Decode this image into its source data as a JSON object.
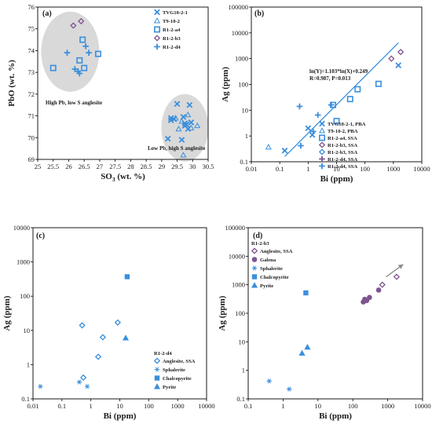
{
  "colors": {
    "primary": "#3a8fdc",
    "purple": "#7e548f",
    "cluster_fill": "#d9d9d9",
    "arrow": "#8c8c8c",
    "axis": "#000000"
  },
  "chart_data": [
    {
      "panel": "(a)",
      "type": "scatter",
      "xlabel": "SO3 (wt. %)",
      "ylabel": "PbO (wt. %)",
      "xlim": [
        25,
        30.5
      ],
      "ylim": [
        69,
        76
      ],
      "x_ticks": [
        "25",
        "25.5",
        "26",
        "26.5",
        "27",
        "27.5",
        "28",
        "28.5",
        "29",
        "29.5",
        "30",
        "30.5"
      ],
      "y_ticks": [
        "69",
        "70",
        "71",
        "72",
        "73",
        "74",
        "75",
        "76"
      ],
      "grid": false,
      "legend_position": "top-right",
      "annotations": [
        "High Pb, low S anglesite",
        "Low Pb, high S anglesite"
      ],
      "series": [
        {
          "name": "TVG10-2-1",
          "marker": "x",
          "color": "#3a8fdc",
          "points": [
            [
              29.2,
              69.95
            ],
            [
              29.3,
              70.9
            ],
            [
              29.4,
              70.85
            ],
            [
              29.5,
              71.55
            ],
            [
              29.65,
              69.9
            ],
            [
              29.7,
              70.95
            ],
            [
              29.75,
              70.55
            ],
            [
              29.8,
              70.6
            ],
            [
              29.85,
              70.4
            ],
            [
              29.9,
              71.5
            ],
            [
              29.95,
              70.7
            ],
            [
              29.75,
              70.65
            ],
            [
              29.3,
              70.8
            ]
          ]
        },
        {
          "name": "T9-10-2",
          "marker": "triangle",
          "color": "#3a8fdc",
          "points": [
            [
              29.45,
              70.9
            ],
            [
              29.55,
              70.4
            ],
            [
              29.7,
              69.2
            ],
            [
              29.85,
              71.05
            ],
            [
              29.95,
              70.45
            ],
            [
              30.15,
              70.55
            ],
            [
              29.65,
              70.75
            ]
          ]
        },
        {
          "name": "R1-2-a4",
          "marker": "square",
          "color": "#3a8fdc",
          "points": [
            [
              25.5,
              73.2
            ],
            [
              26.35,
              73.55
            ],
            [
              26.45,
              74.5
            ],
            [
              26.5,
              73.2
            ],
            [
              26.95,
              73.85
            ]
          ]
        },
        {
          "name": "R1-2-b3",
          "marker": "diamond",
          "color": "#7e548f",
          "points": [
            [
              26.15,
              75.15
            ],
            [
              26.4,
              75.35
            ]
          ]
        },
        {
          "name": "R1-2-d4",
          "marker": "plus",
          "color": "#3a8fdc",
          "points": [
            [
              25.95,
              73.9
            ],
            [
              26.2,
              73.15
            ],
            [
              26.3,
              73.05
            ],
            [
              26.35,
              72.95
            ],
            [
              26.55,
              74.2
            ],
            [
              26.65,
              73.9
            ]
          ]
        }
      ]
    },
    {
      "panel": "(b)",
      "type": "scatter",
      "xlabel": "Bi (ppm)",
      "ylabel": "Ag (ppm)",
      "xscale": "log",
      "yscale": "log",
      "xlim": [
        0.01,
        10000
      ],
      "ylim": [
        0.1,
        100000
      ],
      "x_ticks": [
        "0.01",
        "0.1",
        "1",
        "10",
        "100",
        "1000",
        "10000"
      ],
      "y_ticks": [
        "0.1",
        "1",
        "10",
        "100",
        "1000",
        "10000",
        "100000"
      ],
      "grid": false,
      "legend_position": "bottom-right",
      "equation": "ln(Y)=1.103*ln(X)+0.249",
      "stats": "R=0.987, P=0.013",
      "fit_line": {
        "x": [
          0.15,
          1500
        ]
      },
      "series": [
        {
          "name": "TVG10-2-1, PBA",
          "marker": "x",
          "color": "#3a8fdc",
          "points": [
            [
              0.15,
              0.27
            ],
            [
              1.0,
              2.0
            ],
            [
              1.4,
              1.1
            ],
            [
              1500,
              550
            ]
          ]
        },
        {
          "name": "T9-10-2, PBA",
          "marker": "triangle",
          "color": "#3a8fdc",
          "points": [
            [
              0.04,
              0.37
            ]
          ]
        },
        {
          "name": "R1-2-a4, SSA",
          "marker": "square",
          "color": "#3a8fdc",
          "points": [
            [
              7.5,
              16
            ],
            [
              10,
              3.8
            ],
            [
              30,
              27
            ],
            [
              55,
              65
            ],
            [
              300,
              105
            ]
          ]
        },
        {
          "name": "R1-2-b3, SSA",
          "marker": "diamond",
          "color": "#7e548f",
          "points": [
            [
              850,
              1000
            ],
            [
              1800,
              1800
            ]
          ]
        },
        {
          "name": "R1-2-b3, SSA",
          "marker": "diamond-open",
          "color": "#3a8fdc",
          "points": []
        },
        {
          "name": "R1-2-d4, SSA",
          "marker": "plus",
          "color": "#7e548f",
          "points": []
        },
        {
          "name": "R1-2-d4, SSA",
          "marker": "plus",
          "color": "#3a8fdc",
          "points": [
            [
              0.5,
              14
            ],
            [
              0.55,
              0.42
            ],
            [
              1.5,
              1.5
            ],
            [
              2.2,
              6.5
            ],
            [
              6.5,
              16
            ]
          ]
        }
      ]
    },
    {
      "panel": "(c)",
      "type": "scatter",
      "xlabel": "Bi (ppm)",
      "ylabel": "Ag (ppm)",
      "xscale": "log",
      "yscale": "log",
      "xlim": [
        0.01,
        10000
      ],
      "ylim": [
        0.1,
        10000
      ],
      "x_ticks": [
        "0.01",
        "0.1",
        "1",
        "10",
        "100",
        "1000",
        "10000"
      ],
      "y_ticks": [
        "0.1",
        "1",
        "10",
        "100",
        "1000",
        "10000"
      ],
      "grid": false,
      "legend_position": "bottom-right",
      "legend_title": "R1-2-d4",
      "series": [
        {
          "name": "Anglesite, SSA",
          "marker": "diamond-open",
          "color": "#3a8fdc",
          "points": [
            [
              0.5,
              14
            ],
            [
              0.55,
              0.42
            ],
            [
              1.8,
              1.7
            ],
            [
              2.6,
              6.3
            ],
            [
              8.5,
              17
            ]
          ]
        },
        {
          "name": "Sphalerite",
          "marker": "star",
          "color": "#3a8fdc",
          "points": [
            [
              0.018,
              0.23
            ],
            [
              0.4,
              0.31
            ],
            [
              0.75,
              0.23
            ]
          ]
        },
        {
          "name": "Chalcopyrite",
          "marker": "square",
          "color": "#3a8fdc",
          "points": [
            [
              18,
              370
            ]
          ]
        },
        {
          "name": "Pyrite",
          "marker": "triangle",
          "color": "#3a8fdc",
          "points": [
            [
              16,
              6
            ]
          ]
        }
      ]
    },
    {
      "panel": "(d)",
      "type": "scatter",
      "xlabel": "Bi (ppm)",
      "ylabel": "Ag (ppm)",
      "xscale": "log",
      "yscale": "log",
      "xlim": [
        0.1,
        10000
      ],
      "ylim": [
        0.1,
        100000
      ],
      "x_ticks": [
        "0.1",
        "1",
        "10",
        "100",
        "1000",
        "10000"
      ],
      "y_ticks": [
        "0.1",
        "1",
        "10",
        "100",
        "1000",
        "10000",
        "100000"
      ],
      "grid": false,
      "legend_position": "top-left",
      "legend_title": "R1-2-b3",
      "arrow": {
        "from": [
          900,
          1900
        ],
        "to": [
          2800,
          5200
        ]
      },
      "series": [
        {
          "name": "Anglesite, SSA",
          "marker": "diamond-open",
          "color": "#7e548f",
          "points": [
            [
              700,
              1000
            ],
            [
              1800,
              1900
            ]
          ]
        },
        {
          "name": "Galena",
          "marker": "circle",
          "color": "#7e548f",
          "points": [
            [
              200,
              250
            ],
            [
              220,
              310
            ],
            [
              250,
              280
            ],
            [
              300,
              360
            ],
            [
              550,
              650
            ]
          ]
        },
        {
          "name": "Sphalerite",
          "marker": "star",
          "color": "#3a8fdc",
          "points": [
            [
              0.4,
              0.42
            ],
            [
              1.5,
              0.22
            ]
          ]
        },
        {
          "name": "Chalcopyrite",
          "marker": "square",
          "color": "#3a8fdc",
          "points": [
            [
              4.5,
              520
            ]
          ]
        },
        {
          "name": "Pyrite",
          "marker": "triangle",
          "color": "#3a8fdc",
          "points": [
            [
              3.5,
              4
            ],
            [
              5,
              6.5
            ]
          ]
        }
      ]
    }
  ]
}
